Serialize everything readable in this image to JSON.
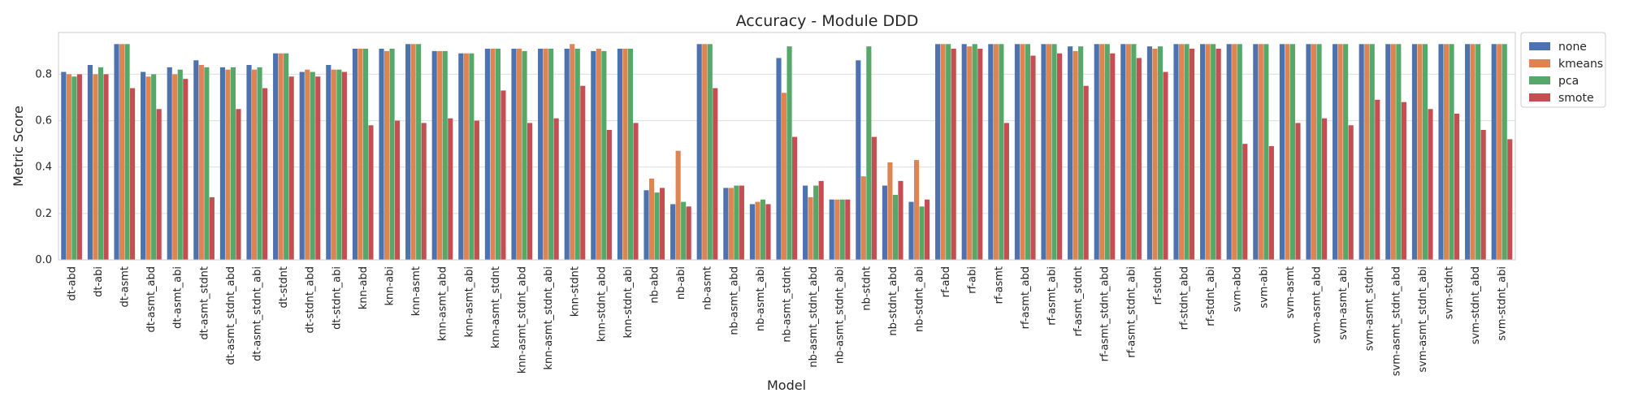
{
  "chart_data": {
    "type": "bar",
    "title": "Accuracy - Module DDD",
    "xlabel": "Model",
    "ylabel": "Metric Score",
    "ylim": [
      0,
      0.98
    ],
    "yticks": [
      "0.0",
      "0.2",
      "0.4",
      "0.6",
      "0.8"
    ],
    "grid": true,
    "legend_position": "outside top-right",
    "categories": [
      "dt-abd",
      "dt-abi",
      "dt-asmt",
      "dt-asmt_abd",
      "dt-asmt_abi",
      "dt-asmt_stdnt",
      "dt-asmt_stdnt_abd",
      "dt-asmt_stdnt_abi",
      "dt-stdnt",
      "dt-stdnt_abd",
      "dt-stdnt_abi",
      "knn-abd",
      "knn-abi",
      "knn-asmt",
      "knn-asmt_abd",
      "knn-asmt_abi",
      "knn-asmt_stdnt",
      "knn-asmt_stdnt_abd",
      "knn-asmt_stdnt_abi",
      "knn-stdnt",
      "knn-stdnt_abd",
      "knn-stdnt_abi",
      "nb-abd",
      "nb-abi",
      "nb-asmt",
      "nb-asmt_abd",
      "nb-asmt_abi",
      "nb-asmt_stdnt",
      "nb-asmt_stdnt_abd",
      "nb-asmt_stdnt_abi",
      "nb-stdnt",
      "nb-stdnt_abd",
      "nb-stdnt_abi",
      "rf-abd",
      "rf-abi",
      "rf-asmt",
      "rf-asmt_abd",
      "rf-asmt_abi",
      "rf-asmt_stdnt",
      "rf-asmt_stdnt_abd",
      "rf-asmt_stdnt_abi",
      "rf-stdnt",
      "rf-stdnt_abd",
      "rf-stdnt_abi",
      "svm-abd",
      "svm-abi",
      "svm-asmt",
      "svm-asmt_abd",
      "svm-asmt_abi",
      "svm-asmt_stdnt",
      "svm-asmt_stdnt_abd",
      "svm-asmt_stdnt_abi",
      "svm-stdnt",
      "svm-stdnt_abd",
      "svm-stdnt_abi"
    ],
    "series": [
      {
        "name": "none",
        "color": "#4c72b0",
        "values": [
          0.81,
          0.84,
          0.93,
          0.81,
          0.83,
          0.86,
          0.83,
          0.84,
          0.89,
          0.81,
          0.84,
          0.91,
          0.91,
          0.93,
          0.9,
          0.89,
          0.91,
          0.91,
          0.91,
          0.91,
          0.9,
          0.91,
          0.3,
          0.24,
          0.93,
          0.31,
          0.24,
          0.87,
          0.32,
          0.26,
          0.86,
          0.32,
          0.25,
          0.93,
          0.93,
          0.93,
          0.93,
          0.93,
          0.92,
          0.93,
          0.93,
          0.92,
          0.93,
          0.93,
          0.93,
          0.93,
          0.93,
          0.93,
          0.93,
          0.93,
          0.93,
          0.93,
          0.93,
          0.93,
          0.93
        ]
      },
      {
        "name": "kmeans",
        "color": "#dd8452",
        "values": [
          0.8,
          0.8,
          0.93,
          0.79,
          0.8,
          0.84,
          0.82,
          0.82,
          0.89,
          0.82,
          0.82,
          0.91,
          0.9,
          0.93,
          0.9,
          0.89,
          0.91,
          0.91,
          0.91,
          0.93,
          0.91,
          0.91,
          0.35,
          0.47,
          0.93,
          0.31,
          0.25,
          0.72,
          0.27,
          0.26,
          0.36,
          0.42,
          0.43,
          0.93,
          0.92,
          0.93,
          0.93,
          0.93,
          0.9,
          0.93,
          0.93,
          0.91,
          0.93,
          0.93,
          0.93,
          0.93,
          0.93,
          0.93,
          0.93,
          0.93,
          0.93,
          0.93,
          0.93,
          0.93,
          0.93
        ]
      },
      {
        "name": "pca",
        "color": "#55a868",
        "values": [
          0.79,
          0.83,
          0.93,
          0.8,
          0.82,
          0.83,
          0.83,
          0.83,
          0.89,
          0.81,
          0.82,
          0.91,
          0.91,
          0.93,
          0.9,
          0.89,
          0.91,
          0.9,
          0.91,
          0.91,
          0.9,
          0.91,
          0.29,
          0.25,
          0.93,
          0.32,
          0.26,
          0.92,
          0.32,
          0.26,
          0.92,
          0.28,
          0.23,
          0.93,
          0.93,
          0.93,
          0.93,
          0.93,
          0.92,
          0.93,
          0.93,
          0.92,
          0.93,
          0.93,
          0.93,
          0.93,
          0.93,
          0.93,
          0.93,
          0.93,
          0.93,
          0.93,
          0.93,
          0.93,
          0.93
        ]
      },
      {
        "name": "smote",
        "color": "#c44e52",
        "values": [
          0.8,
          0.8,
          0.74,
          0.65,
          0.78,
          0.27,
          0.65,
          0.74,
          0.79,
          0.79,
          0.81,
          0.58,
          0.6,
          0.59,
          0.61,
          0.6,
          0.73,
          0.59,
          0.61,
          0.75,
          0.56,
          0.59,
          0.31,
          0.23,
          0.74,
          0.32,
          0.24,
          0.53,
          0.34,
          0.26,
          0.53,
          0.34,
          0.26,
          0.91,
          0.91,
          0.59,
          0.88,
          0.89,
          0.75,
          0.89,
          0.87,
          0.81,
          0.91,
          0.91,
          0.5,
          0.49,
          0.59,
          0.61,
          0.58,
          0.69,
          0.68,
          0.65,
          0.63,
          0.56,
          0.52
        ]
      }
    ]
  }
}
